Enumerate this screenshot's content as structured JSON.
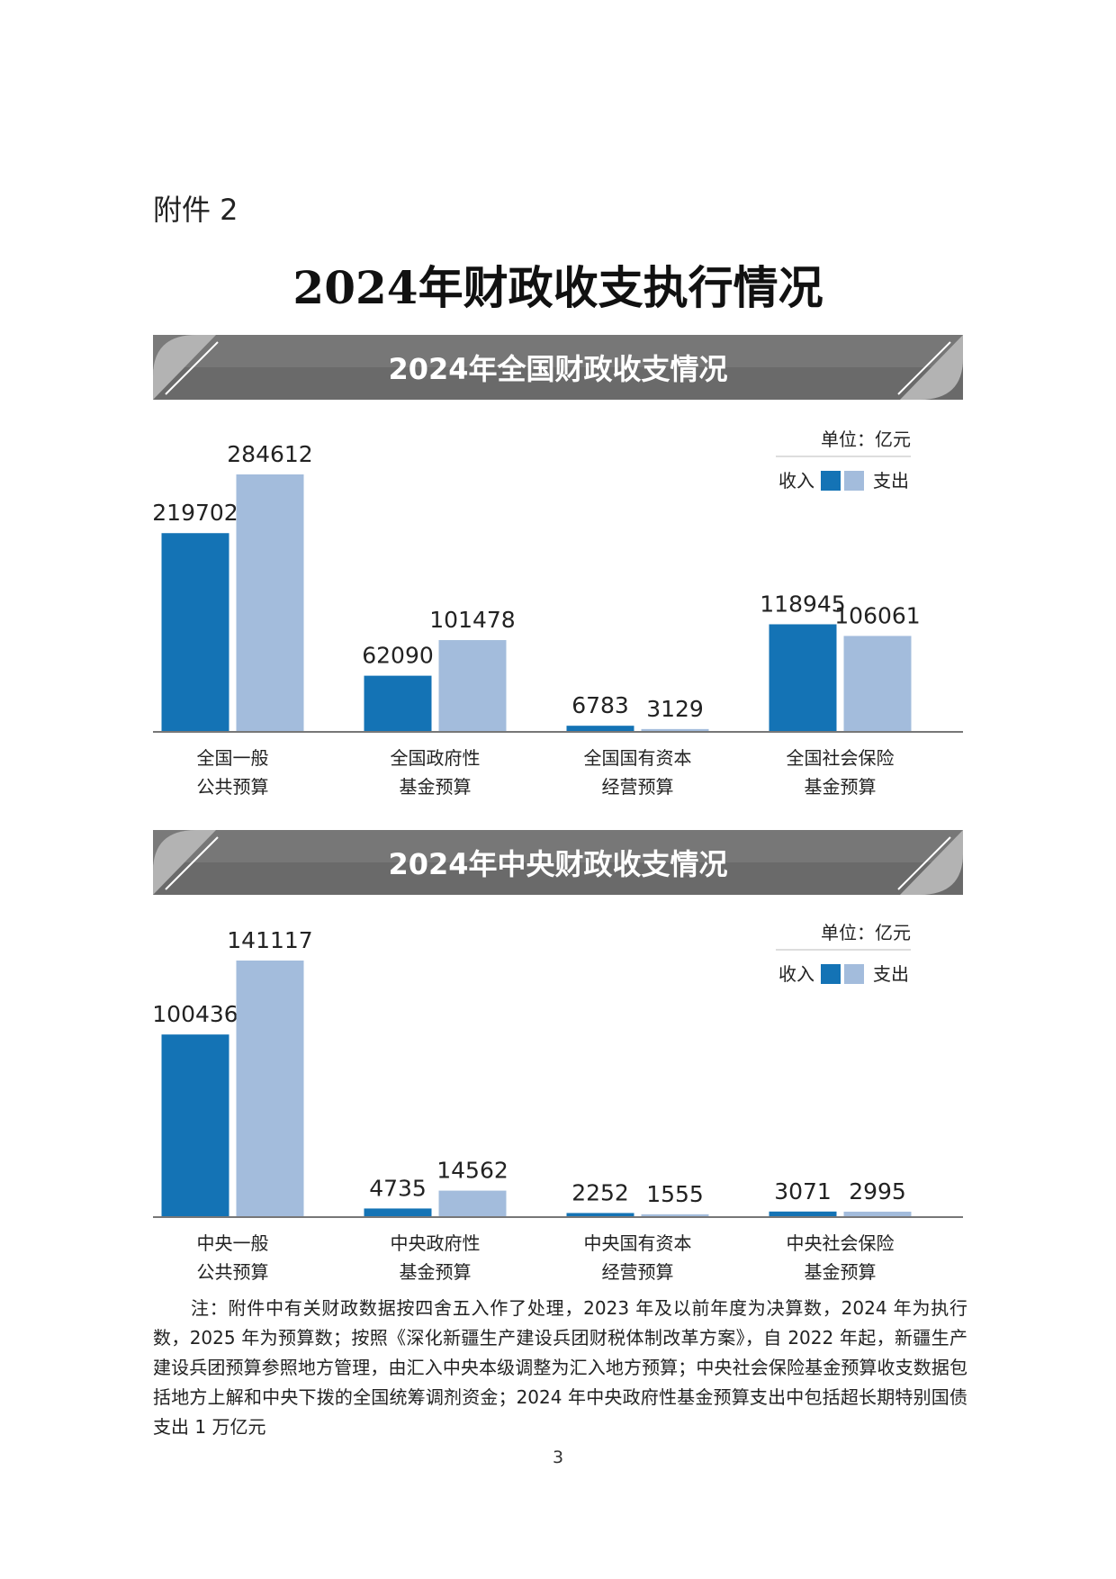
{
  "attachment_label": "附件 2",
  "page_title": "2024年财政收支执行情况",
  "legend": {
    "unit": "单位：亿元",
    "income_label": "收入",
    "expenditure_label": "支出",
    "income_color": "#1473b5",
    "expenditure_color": "#a3bcdc"
  },
  "chart_data": [
    {
      "type": "bar",
      "title": "2024年全国财政收支情况",
      "unit": "单位：亿元",
      "categories": [
        [
          "全国一般",
          "公共预算"
        ],
        [
          "全国政府性",
          "基金预算"
        ],
        [
          "全国国有资本",
          "经营预算"
        ],
        [
          "全国社会保险",
          "基金预算"
        ]
      ],
      "series": [
        {
          "name": "收入",
          "values": [
            219702,
            62090,
            6783,
            118945
          ]
        },
        {
          "name": "支出",
          "values": [
            284612,
            101478,
            3129,
            106061
          ]
        }
      ],
      "ylim": [
        0,
        284612
      ],
      "legend_position": "top-right",
      "grid": false
    },
    {
      "type": "bar",
      "title": "2024年中央财政收支情况",
      "unit": "单位：亿元",
      "categories": [
        [
          "中央一般",
          "公共预算"
        ],
        [
          "中央政府性",
          "基金预算"
        ],
        [
          "中央国有资本",
          "经营预算"
        ],
        [
          "中央社会保险",
          "基金预算"
        ]
      ],
      "series": [
        {
          "name": "收入",
          "values": [
            100436,
            4735,
            2252,
            3071
          ]
        },
        {
          "name": "支出",
          "values": [
            141117,
            14562,
            1555,
            2995
          ]
        }
      ],
      "ylim": [
        0,
        141117
      ],
      "legend_position": "top-right",
      "grid": false
    }
  ],
  "note": "注：附件中有关财政数据按四舍五入作了处理，2023 年及以前年度为决算数，2024 年为执行数，2025 年为预算数；按照《深化新疆生产建设兵团财税体制改革方案》，自 2022 年起，新疆生产建设兵团预算参照地方管理，由汇入中央本级调整为汇入地方预算；中央社会保险基金预算收支数据包括地方上解和中央下拨的全国统筹调剂资金；2024 年中央政府性基金预算支出中包括超长期特别国债支出 1 万亿元",
  "page_number": "3"
}
